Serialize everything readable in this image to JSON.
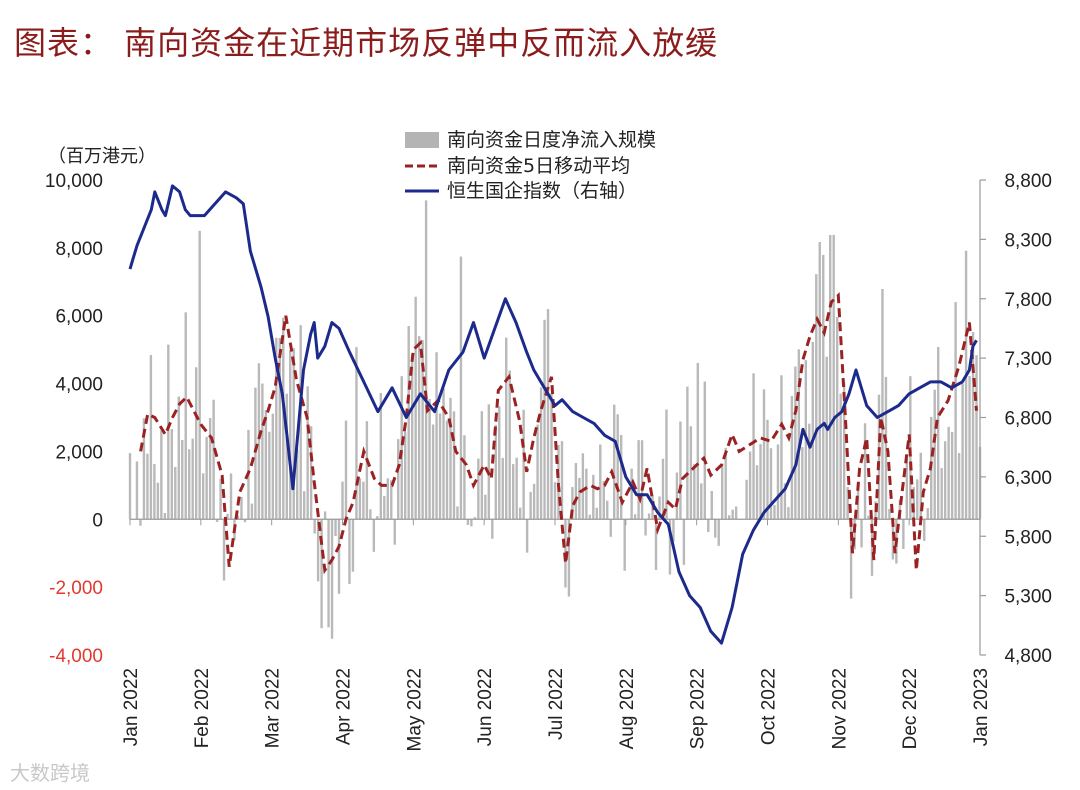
{
  "title": "图表： 南向资金在近期市场反弹中反而流入放缓",
  "watermark": "大数跨境",
  "chart_data": {
    "type": "bar+line",
    "left_axis_unit": "（百万港元）",
    "left_axis": {
      "ticks": [
        10000,
        8000,
        6000,
        4000,
        2000,
        0,
        -2000,
        -4000
      ],
      "labels": [
        "10,000",
        "8,000",
        "6,000",
        "4,000",
        "2,000",
        "0",
        "-2,000",
        "-4,000"
      ],
      "range": [
        -4000,
        10000
      ]
    },
    "right_axis": {
      "ticks": [
        8800,
        8300,
        7800,
        7300,
        6800,
        6300,
        5800,
        5300,
        4800
      ],
      "labels": [
        "8,800",
        "8,300",
        "7,800",
        "7,300",
        "6,800",
        "6,300",
        "5,800",
        "5,300",
        "4,800"
      ],
      "range": [
        4800,
        8800
      ]
    },
    "x_range": [
      0,
      12
    ],
    "x_labels": [
      "Jan 2022",
      "Feb 2022",
      "Mar 2022",
      "Apr 2022",
      "May 2022",
      "Jun 2022",
      "Jul 2022",
      "Aug 2022",
      "Sep 2022",
      "Oct 2022",
      "Nov 2022",
      "Dec 2022",
      "Jan 2023"
    ],
    "legend": [
      {
        "name": "南向资金日度净流入规模",
        "kind": "bar",
        "color": "#b4b4b4"
      },
      {
        "name": "南向资金5日移动平均",
        "kind": "dashed",
        "color": "#9b2222"
      },
      {
        "name": "恒生国企指数（右轴）",
        "kind": "line",
        "color": "#1c2a8c"
      }
    ],
    "ma5": {
      "x": [
        0.15,
        0.25,
        0.35,
        0.5,
        0.6,
        0.7,
        0.8,
        0.9,
        1.0,
        1.15,
        1.3,
        1.4,
        1.55,
        1.7,
        1.85,
        1.95,
        2.05,
        2.2,
        2.35,
        2.5,
        2.6,
        2.75,
        2.85,
        2.95,
        3.05,
        3.15,
        3.3,
        3.45,
        3.55,
        3.7,
        3.8,
        3.9,
        4.0,
        4.1,
        4.2,
        4.35,
        4.5,
        4.6,
        4.75,
        4.85,
        5.0,
        5.1,
        5.2,
        5.35,
        5.5,
        5.6,
        5.7,
        5.8,
        5.95,
        6.05,
        6.15,
        6.25,
        6.35,
        6.5,
        6.6,
        6.7,
        6.8,
        6.95,
        7.1,
        7.2,
        7.3,
        7.45,
        7.6,
        7.7,
        7.8,
        7.95,
        8.1,
        8.2,
        8.35,
        8.5,
        8.6,
        8.75,
        8.9,
        9.05,
        9.2,
        9.3,
        9.4,
        9.5,
        9.6,
        9.7,
        9.8,
        9.9,
        10.0,
        10.1,
        10.2,
        10.3,
        10.4,
        10.5,
        10.6,
        10.7,
        10.8,
        10.9,
        11.0,
        11.1,
        11.2,
        11.3,
        11.4,
        11.55,
        11.7,
        11.85,
        11.95
      ],
      "y": [
        2000,
        3100,
        3000,
        2500,
        3000,
        3400,
        3600,
        3200,
        2800,
        2400,
        1300,
        -1400,
        800,
        1500,
        2600,
        3200,
        3900,
        6000,
        4100,
        3000,
        1100,
        -1500,
        -1200,
        -800,
        0,
        500,
        2000,
        1200,
        1000,
        1000,
        1600,
        3000,
        5000,
        5200,
        3200,
        3500,
        3000,
        2000,
        1600,
        1000,
        1600,
        1200,
        3800,
        4200,
        2900,
        1400,
        2400,
        3200,
        4200,
        1000,
        -1300,
        400,
        800,
        1000,
        900,
        1000,
        1400,
        500,
        1100,
        600,
        1500,
        -300,
        500,
        300,
        1200,
        1500,
        1800,
        1300,
        1600,
        2500,
        2000,
        2200,
        2400,
        2300,
        2800,
        2400,
        3200,
        4700,
        5400,
        5900,
        5500,
        6400,
        6600,
        3000,
        -1000,
        1500,
        2400,
        -1200,
        3000,
        2000,
        -1000,
        800,
        2500,
        -1500,
        800,
        1500,
        3000,
        3500,
        4500,
        5800,
        3200
      ]
    },
    "hscei": {
      "x": [
        0.0,
        0.05,
        0.1,
        0.2,
        0.3,
        0.35,
        0.45,
        0.5,
        0.6,
        0.7,
        0.78,
        0.85,
        0.95,
        1.05,
        1.2,
        1.35,
        1.5,
        1.6,
        1.7,
        1.85,
        1.95,
        2.05,
        2.15,
        2.3,
        2.45,
        2.55,
        2.6,
        2.65,
        2.75,
        2.85,
        2.95,
        3.1,
        3.3,
        3.5,
        3.7,
        3.9,
        4.1,
        4.3,
        4.5,
        4.7,
        4.85,
        5.0,
        5.15,
        5.3,
        5.45,
        5.6,
        5.7,
        5.85,
        6.0,
        6.1,
        6.25,
        6.4,
        6.55,
        6.7,
        6.85,
        7.0,
        7.15,
        7.3,
        7.45,
        7.6,
        7.75,
        7.9,
        8.05,
        8.2,
        8.35,
        8.5,
        8.65,
        8.8,
        8.95,
        9.1,
        9.25,
        9.4,
        9.5,
        9.6,
        9.7,
        9.8,
        9.85,
        9.95,
        10.05,
        10.15,
        10.25,
        10.4,
        10.55,
        10.7,
        10.85,
        11.0,
        11.15,
        11.3,
        11.45,
        11.6,
        11.75,
        11.85,
        11.9,
        11.95
      ],
      "y": [
        8050,
        8150,
        8250,
        8400,
        8550,
        8700,
        8550,
        8500,
        8750,
        8700,
        8550,
        8500,
        8500,
        8500,
        8600,
        8700,
        8650,
        8600,
        8200,
        7900,
        7650,
        7300,
        7000,
        6200,
        7200,
        7500,
        7600,
        7300,
        7400,
        7600,
        7550,
        7350,
        7100,
        6850,
        7050,
        6800,
        7000,
        6850,
        7200,
        7350,
        7600,
        7300,
        7550,
        7800,
        7600,
        7350,
        7200,
        7050,
        6900,
        6950,
        6850,
        6800,
        6750,
        6650,
        6600,
        6300,
        6150,
        6150,
        6000,
        5900,
        5500,
        5300,
        5200,
        5000,
        4900,
        5200,
        5650,
        5850,
        6000,
        6100,
        6200,
        6400,
        6700,
        6550,
        6700,
        6750,
        6700,
        6800,
        6850,
        7000,
        7200,
        6900,
        6800,
        6850,
        6900,
        7000,
        7050,
        7100,
        7100,
        7050,
        7100,
        7200,
        7400,
        7450
      ]
    }
  }
}
